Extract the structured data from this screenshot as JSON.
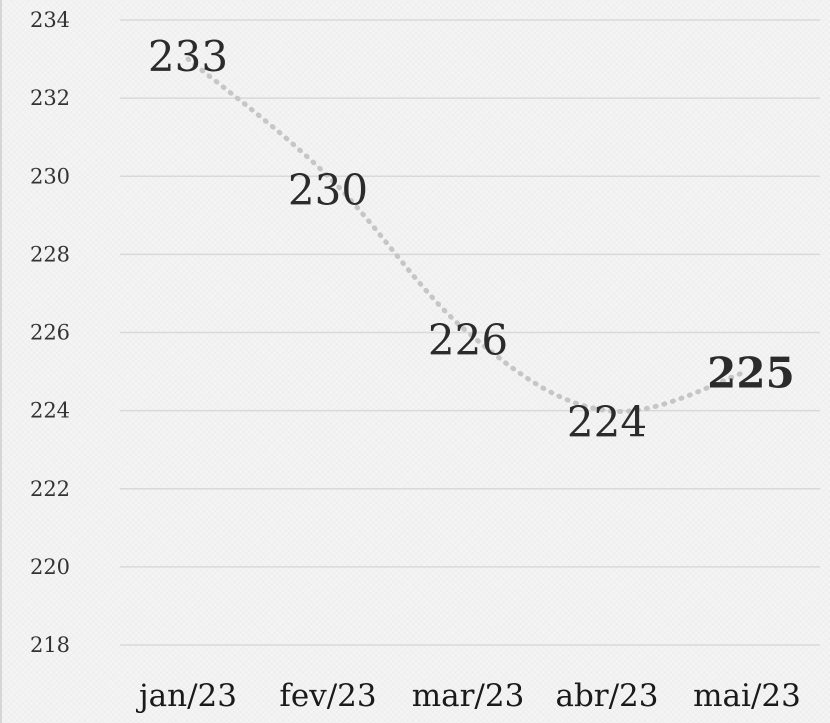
{
  "chart_data": {
    "type": "line",
    "categories": [
      "jan/23",
      "fev/23",
      "mar/23",
      "abr/23",
      "mai/23"
    ],
    "series": [
      {
        "values": [
          233,
          230,
          226,
          224,
          225
        ],
        "data_labels": [
          "233",
          "230",
          "226",
          "224",
          "225"
        ]
      }
    ],
    "ylim": [
      218,
      234
    ],
    "y_ticks": [
      "234",
      "232",
      "230",
      "228",
      "226",
      "224",
      "222",
      "220",
      "218"
    ],
    "y_tick_values": [
      234,
      232,
      230,
      228,
      226,
      224,
      222,
      220,
      218
    ],
    "grid": true,
    "line_style": "dotted",
    "colors": {
      "line": "#c6c6c6",
      "grid": "#d9d9d9",
      "background": "#f4f4f4",
      "text": "#2b2b2b"
    }
  }
}
